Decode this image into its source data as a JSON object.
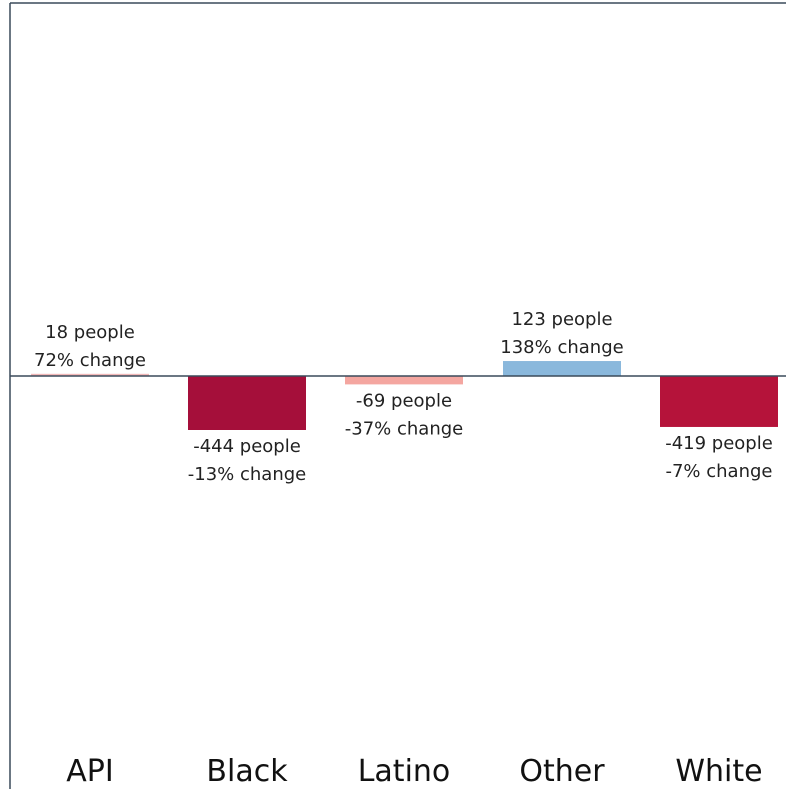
{
  "chart_data": {
    "type": "bar",
    "title": "",
    "xlabel": "",
    "ylabel": "",
    "categories": [
      "API",
      "Black",
      "Latino",
      "Other",
      "White"
    ],
    "values": [
      18,
      -444,
      -69,
      123,
      -419
    ],
    "pct_change": [
      72,
      -13,
      -37,
      138,
      -7
    ],
    "labels": [
      [
        "18 people",
        "72% change"
      ],
      [
        "-444 people",
        "-13% change"
      ],
      [
        "-69 people",
        "-37% change"
      ],
      [
        "123 people",
        "138% change"
      ],
      [
        "-419 people",
        "-7% change"
      ]
    ],
    "ylim": [
      -2900,
      2900
    ],
    "grid": false,
    "legend": "none"
  },
  "colors": {
    "bar_colors": [
      "#f2b8b8",
      "#a50f3a",
      "#f4a6a0",
      "#8ab8dc",
      "#b5133a"
    ],
    "axis": "#3a4a5a",
    "text": "#222222"
  }
}
